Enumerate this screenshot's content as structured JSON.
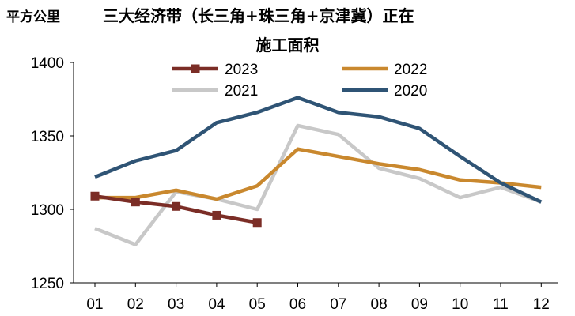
{
  "chart_data": {
    "type": "line",
    "title": "三大经济带（长三角+珠三角+京津冀）正在施工面积",
    "title_line1": "三大经济带（长三角+珠三角+京津冀）正在",
    "title_line2": "施工面积",
    "ylabel": "平方公里",
    "xlabel": "",
    "categories": [
      "01",
      "02",
      "03",
      "04",
      "05",
      "06",
      "07",
      "08",
      "09",
      "10",
      "11",
      "12"
    ],
    "ylim": [
      1250,
      1400
    ],
    "yticks": [
      1250,
      1300,
      1350,
      1400
    ],
    "legend_position": "top",
    "series": [
      {
        "name": "2023",
        "color": "#7b2d26",
        "marker": "square",
        "values": [
          1309,
          1305,
          1302,
          1296,
          1291,
          null,
          null,
          null,
          null,
          null,
          null,
          null
        ]
      },
      {
        "name": "2022",
        "color": "#c9882e",
        "marker": "none",
        "values": [
          1308,
          1308,
          1313,
          1307,
          1316,
          1341,
          1336,
          1331,
          1327,
          1320,
          1318,
          1315
        ]
      },
      {
        "name": "2021",
        "color": "#c8c8c8",
        "marker": "none",
        "values": [
          1287,
          1276,
          1312,
          1307,
          1300,
          1357,
          1351,
          1328,
          1321,
          1308,
          1315,
          1305
        ]
      },
      {
        "name": "2020",
        "color": "#2f5475",
        "marker": "none",
        "values": [
          1322,
          1333,
          1340,
          1359,
          1366,
          1376,
          1366,
          1363,
          1355,
          1336,
          1318,
          1305
        ]
      }
    ]
  }
}
